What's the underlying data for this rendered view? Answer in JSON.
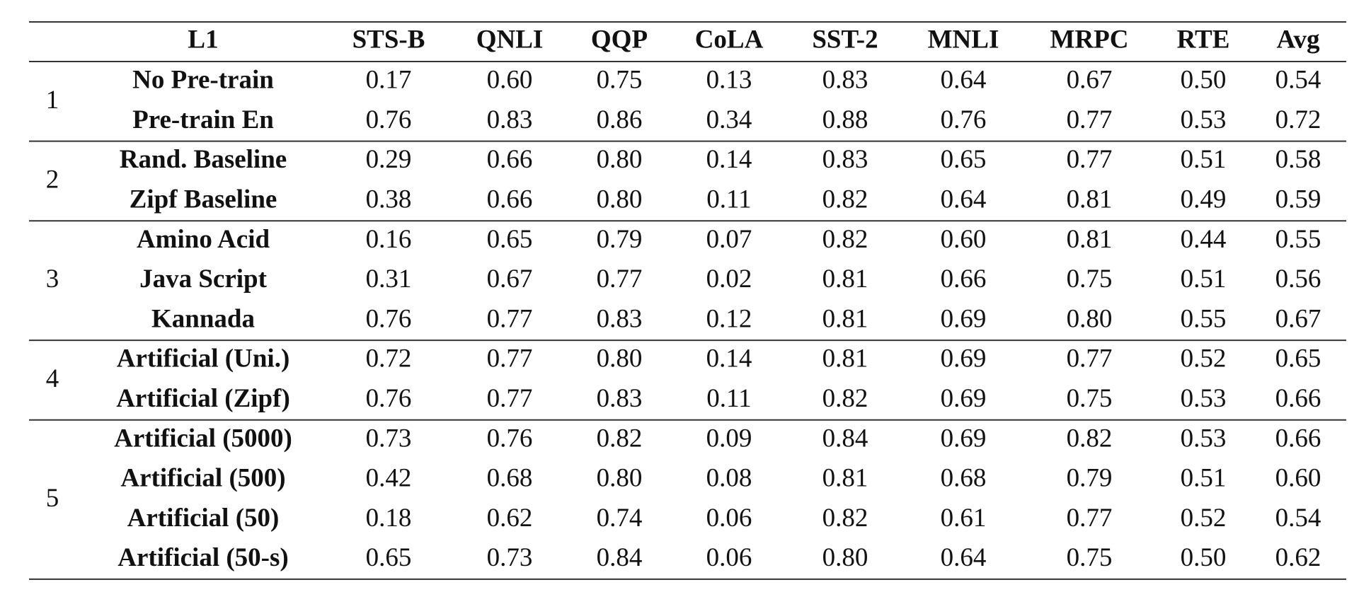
{
  "table": {
    "columns": [
      "L1",
      "STS-B",
      "QNLI",
      "QQP",
      "CoLA",
      "SST-2",
      "MNLI",
      "MRPC",
      "RTE",
      "Avg"
    ],
    "groups": [
      {
        "label": "1",
        "rows": [
          {
            "name": "No Pre-train",
            "values": [
              "0.17",
              "0.60",
              "0.75",
              "0.13",
              "0.83",
              "0.64",
              "0.67",
              "0.50",
              "0.54"
            ]
          },
          {
            "name": "Pre-train En",
            "values": [
              "0.76",
              "0.83",
              "0.86",
              "0.34",
              "0.88",
              "0.76",
              "0.77",
              "0.53",
              "0.72"
            ]
          }
        ]
      },
      {
        "label": "2",
        "rows": [
          {
            "name": "Rand. Baseline",
            "values": [
              "0.29",
              "0.66",
              "0.80",
              "0.14",
              "0.83",
              "0.65",
              "0.77",
              "0.51",
              "0.58"
            ]
          },
          {
            "name": "Zipf Baseline",
            "values": [
              "0.38",
              "0.66",
              "0.80",
              "0.11",
              "0.82",
              "0.64",
              "0.81",
              "0.49",
              "0.59"
            ]
          }
        ]
      },
      {
        "label": "3",
        "rows": [
          {
            "name": "Amino Acid",
            "values": [
              "0.16",
              "0.65",
              "0.79",
              "0.07",
              "0.82",
              "0.60",
              "0.81",
              "0.44",
              "0.55"
            ]
          },
          {
            "name": "Java Script",
            "values": [
              "0.31",
              "0.67",
              "0.77",
              "0.02",
              "0.81",
              "0.66",
              "0.75",
              "0.51",
              "0.56"
            ]
          },
          {
            "name": "Kannada",
            "values": [
              "0.76",
              "0.77",
              "0.83",
              "0.12",
              "0.81",
              "0.69",
              "0.80",
              "0.55",
              "0.67"
            ]
          }
        ]
      },
      {
        "label": "4",
        "rows": [
          {
            "name": "Artificial (Uni.)",
            "values": [
              "0.72",
              "0.77",
              "0.80",
              "0.14",
              "0.81",
              "0.69",
              "0.77",
              "0.52",
              "0.65"
            ]
          },
          {
            "name": "Artificial (Zipf)",
            "values": [
              "0.76",
              "0.77",
              "0.83",
              "0.11",
              "0.82",
              "0.69",
              "0.75",
              "0.53",
              "0.66"
            ]
          }
        ]
      },
      {
        "label": "5",
        "rows": [
          {
            "name": "Artificial (5000)",
            "values": [
              "0.73",
              "0.76",
              "0.82",
              "0.09",
              "0.84",
              "0.69",
              "0.82",
              "0.53",
              "0.66"
            ]
          },
          {
            "name": "Artificial (500)",
            "values": [
              "0.42",
              "0.68",
              "0.80",
              "0.08",
              "0.81",
              "0.68",
              "0.79",
              "0.51",
              "0.60"
            ]
          },
          {
            "name": "Artificial (50)",
            "values": [
              "0.18",
              "0.62",
              "0.74",
              "0.06",
              "0.82",
              "0.61",
              "0.77",
              "0.52",
              "0.54"
            ]
          },
          {
            "name": "Artificial (50-s)",
            "values": [
              "0.65",
              "0.73",
              "0.84",
              "0.06",
              "0.80",
              "0.64",
              "0.75",
              "0.50",
              "0.62"
            ]
          }
        ]
      }
    ]
  }
}
